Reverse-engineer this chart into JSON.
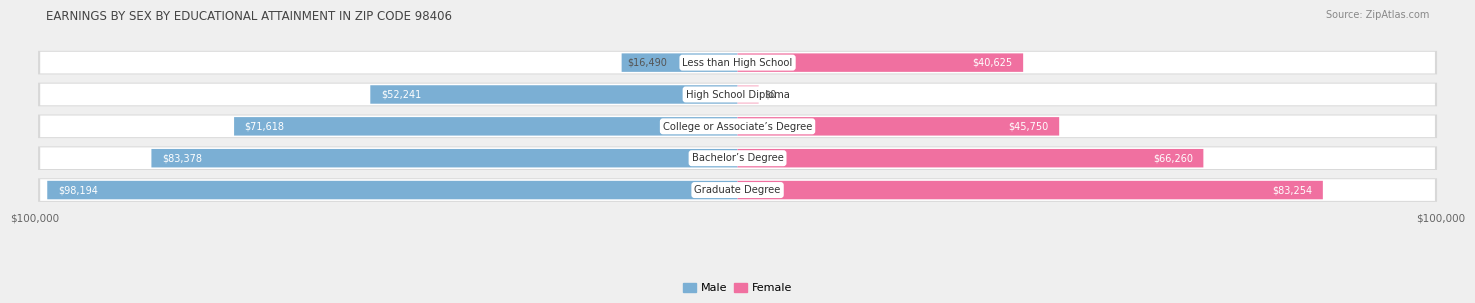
{
  "title": "EARNINGS BY SEX BY EDUCATIONAL ATTAINMENT IN ZIP CODE 98406",
  "source": "Source: ZipAtlas.com",
  "categories": [
    "Less than High School",
    "High School Diploma",
    "College or Associate’s Degree",
    "Bachelor’s Degree",
    "Graduate Degree"
  ],
  "male_values": [
    16490,
    52241,
    71618,
    83378,
    98194
  ],
  "female_values": [
    40625,
    0,
    45750,
    66260,
    83254
  ],
  "male_color": "#7BAFD4",
  "female_color": "#F070A0",
  "female_color_light": "#F9B8CC",
  "axis_max": 100000,
  "bg_color": "#EFEFEF",
  "row_bg_color": "#FFFFFF",
  "row_shadow_color": "#D8D8D8",
  "xlabel_left": "$100,000",
  "xlabel_right": "$100,000",
  "title_color": "#444444",
  "source_color": "#888888",
  "label_color_dark": "#555555",
  "label_color_white": "#FFFFFF"
}
